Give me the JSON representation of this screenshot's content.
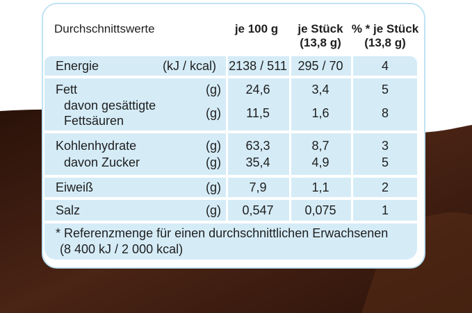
{
  "colors": {
    "row_bg": "#d5ecf7",
    "border": "#bfe3f3",
    "chocolate": "#3b1a0e"
  },
  "header": {
    "label": "Durchschnittswerte",
    "per100": "je 100 g",
    "perPiece": [
      "je Stück",
      "(13,8 g)"
    ],
    "pctPiece": [
      "% * je Stück",
      "(13,8 g)"
    ]
  },
  "rows": {
    "energie": {
      "name": "Energie",
      "unit": "(kJ / kcal)",
      "per100": "2138 / 511",
      "perPiece": "295 / 70",
      "pct": "4"
    },
    "fett": {
      "name": "Fett",
      "unit": "(g)",
      "per100": "24,6",
      "perPiece": "3,4",
      "pct": "5"
    },
    "gesattigt": {
      "name": [
        "davon gesättigte",
        "Fettsäuren"
      ],
      "unit": "(g)",
      "per100": "11,5",
      "perPiece": "1,6",
      "pct": "8"
    },
    "kohlenhydrate": {
      "name": "Kohlenhydrate",
      "unit": "(g)",
      "per100": "63,3",
      "perPiece": "8,7",
      "pct": "3"
    },
    "zucker": {
      "name": "davon Zucker",
      "unit": "(g)",
      "per100": "35,4",
      "perPiece": "4,9",
      "pct": "5"
    },
    "eiweiss": {
      "name": "Eiweiß",
      "unit": "(g)",
      "per100": "7,9",
      "perPiece": "1,1",
      "pct": "2"
    },
    "salz": {
      "name": "Salz",
      "unit": "(g)",
      "per100": "0,547",
      "perPiece": "0,075",
      "pct": "1"
    }
  },
  "footnote": [
    "* Referenzmenge für einen durchschnittlichen Erwachsenen",
    "(8 400 kJ / 2 000 kcal)"
  ]
}
